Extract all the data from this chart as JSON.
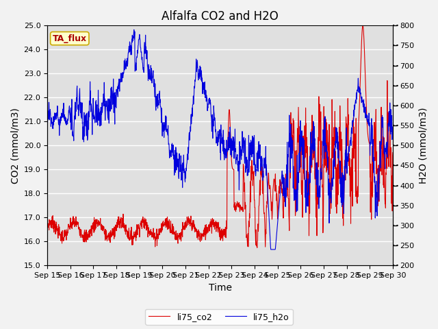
{
  "title": "Alfalfa CO2 and H2O",
  "xlabel": "Time",
  "ylabel_left": "CO2 (mmol/m3)",
  "ylabel_right": "H2O (mmol/m3)",
  "annotation": "TA_flux",
  "ylim_left": [
    15.0,
    25.0
  ],
  "ylim_right": [
    200,
    800
  ],
  "yticks_left": [
    15.0,
    16.0,
    17.0,
    18.0,
    19.0,
    20.0,
    21.0,
    22.0,
    23.0,
    24.0,
    25.0
  ],
  "yticks_right": [
    200,
    250,
    300,
    350,
    400,
    450,
    500,
    550,
    600,
    650,
    700,
    750,
    800
  ],
  "xtick_labels": [
    "Sep 15",
    "Sep 16",
    "Sep 17",
    "Sep 18",
    "Sep 19",
    "Sep 20",
    "Sep 21",
    "Sep 22",
    "Sep 23",
    "Sep 24",
    "Sep 25",
    "Sep 26",
    "Sep 27",
    "Sep 28",
    "Sep 29",
    "Sep 30"
  ],
  "co2_color": "#dd0000",
  "h2o_color": "#0000dd",
  "legend_co2": "li75_co2",
  "legend_h2o": "li75_h2o",
  "plot_bg_color": "#e0e0e0",
  "fig_bg_color": "#f2f2f2",
  "grid_color": "#ffffff",
  "title_fontsize": 12,
  "axis_label_fontsize": 10,
  "tick_fontsize": 8,
  "legend_fontsize": 9,
  "annotation_fontsize": 9,
  "annotation_color": "#aa0000",
  "annotation_bg": "#ffffcc",
  "annotation_edge": "#ccaa00"
}
